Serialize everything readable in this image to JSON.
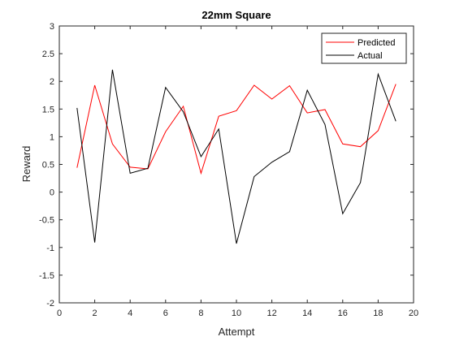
{
  "chart_data": {
    "type": "line",
    "title": "22mm Square",
    "xlabel": "Attempt",
    "ylabel": "Reward",
    "xlim": [
      0,
      20
    ],
    "ylim": [
      -2,
      3
    ],
    "xticks": [
      0,
      2,
      4,
      6,
      8,
      10,
      12,
      14,
      16,
      18,
      20
    ],
    "yticks": [
      -2,
      -1.5,
      -1,
      -0.5,
      0,
      0.5,
      1,
      1.5,
      2,
      2.5,
      3
    ],
    "grid": false,
    "legend": "top-right",
    "x": [
      1,
      2,
      3,
      4,
      5,
      6,
      7,
      8,
      9,
      10,
      11,
      12,
      13,
      14,
      15,
      16,
      17,
      18,
      19
    ],
    "series": [
      {
        "name": "Predicted",
        "color": "#ff0000",
        "values": [
          0.44,
          1.93,
          0.87,
          0.45,
          0.42,
          1.09,
          1.55,
          0.34,
          1.37,
          1.47,
          1.93,
          1.68,
          1.92,
          1.43,
          1.49,
          0.87,
          0.82,
          1.11,
          1.95
        ]
      },
      {
        "name": "Actual",
        "color": "#000000",
        "values": [
          1.52,
          -0.91,
          2.21,
          0.34,
          0.43,
          1.89,
          1.45,
          0.64,
          1.14,
          -0.93,
          0.28,
          0.54,
          0.73,
          1.84,
          1.22,
          -0.39,
          0.17,
          2.13,
          1.28
        ]
      }
    ]
  }
}
